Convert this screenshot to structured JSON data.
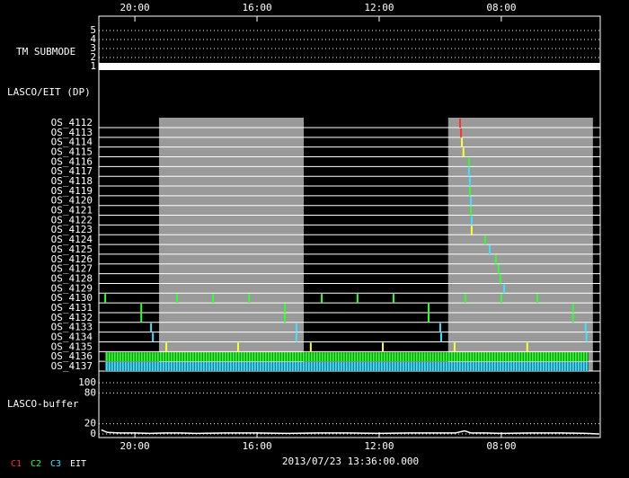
{
  "chart_data": {
    "type": "timeline",
    "xlim": [
      21.18,
      4.76
    ],
    "xticks": [
      {
        "value": 20,
        "label": "20:00"
      },
      {
        "value": 16,
        "label": "16:00"
      },
      {
        "value": 12,
        "label": "12:00"
      },
      {
        "value": 8,
        "label": "08:00"
      }
    ],
    "date_label": "2013/07/23 13:36:00.000",
    "legend": [
      {
        "name": "C1",
        "color": "#ff3030"
      },
      {
        "name": "C2",
        "color": "#30ff30"
      },
      {
        "name": "C3",
        "color": "#40e0ff"
      },
      {
        "name": "EIT",
        "color": "#ffffff"
      }
    ],
    "shaded": [
      [
        19.21,
        14.47
      ],
      [
        9.74,
        5.0
      ]
    ],
    "tm_submode": {
      "label": "TM SUBMODE",
      "ylim": [
        0.6,
        5.6
      ],
      "yticks": [
        1,
        2,
        3,
        4,
        5
      ],
      "value": 1
    },
    "os_panel": {
      "label": "LASCO/EIT (DP)",
      "rows": [
        {
          "name": "OS_4112",
          "color": "#ff3030",
          "events": [
            9.35
          ]
        },
        {
          "name": "OS_4113",
          "color": "#ff3030",
          "events": [
            9.32
          ]
        },
        {
          "name": "OS_4114",
          "color": "#ffff30",
          "events": [
            9.29
          ]
        },
        {
          "name": "OS_4115",
          "color": "#ffff30",
          "events": [
            9.24
          ]
        },
        {
          "name": "OS_4116",
          "color": "#30ff30",
          "events": [
            9.06
          ]
        },
        {
          "name": "OS_4117",
          "color": "#40e0ff",
          "events": [
            9.06
          ]
        },
        {
          "name": "OS_4118",
          "color": "#40e0ff",
          "events": [
            9.03
          ]
        },
        {
          "name": "OS_4119",
          "color": "#30ff30",
          "events": [
            9.03
          ]
        },
        {
          "name": "OS_4120",
          "color": "#40e0ff",
          "events": [
            9.0
          ]
        },
        {
          "name": "OS_4121",
          "color": "#30ff30",
          "events": [
            9.0
          ]
        },
        {
          "name": "OS_4122",
          "color": "#40e0ff",
          "events": [
            8.97
          ]
        },
        {
          "name": "OS_4123",
          "color": "#ffff30",
          "events": [
            8.97
          ]
        },
        {
          "name": "OS_4124",
          "color": "#30ff30",
          "events": [
            8.53
          ]
        },
        {
          "name": "OS_4125",
          "color": "#40e0ff",
          "events": [
            8.38
          ]
        },
        {
          "name": "OS_4126",
          "color": "#30ff30",
          "events": [
            8.18
          ]
        },
        {
          "name": "OS_4127",
          "color": "#30ff30",
          "events": [
            8.09
          ]
        },
        {
          "name": "OS_4128",
          "color": "#30ff30",
          "events": [
            8.03
          ]
        },
        {
          "name": "OS_4129",
          "color": "#40e0ff",
          "events": [
            7.91
          ]
        },
        {
          "name": "OS_4130",
          "color": "#30ff30",
          "events": [
            20.97,
            18.62,
            17.44,
            16.26,
            13.88,
            12.71,
            11.53,
            9.18,
            8.0,
            6.82
          ]
        },
        {
          "name": "OS_4131",
          "color": "#30ff30",
          "events": [
            19.79,
            15.09,
            10.38,
            5.65
          ]
        },
        {
          "name": "OS_4132",
          "color": "#30ff30",
          "events": [
            19.79,
            15.09,
            10.38,
            5.65
          ]
        },
        {
          "name": "OS_4133",
          "color": "#40e0ff",
          "events": [
            19.47,
            14.71,
            10.0,
            5.24
          ]
        },
        {
          "name": "OS_4134",
          "color": "#40e0ff",
          "events": [
            19.41,
            14.71,
            9.97,
            5.21
          ]
        },
        {
          "name": "OS_4135",
          "color": "#ffff30",
          "events": [
            18.97,
            16.62,
            14.24,
            11.88,
            9.53,
            7.15
          ]
        },
        {
          "name": "OS_4136",
          "color": "#30ff30",
          "span": [
            20.97,
            5.15
          ]
        },
        {
          "name": "OS_4137",
          "color": "#40e0ff",
          "span": [
            20.97,
            5.15
          ]
        }
      ]
    },
    "buffer": {
      "label": "LASCO-buffer",
      "ylim": [
        0,
        100
      ],
      "yticks": [
        0,
        20,
        80,
        100
      ],
      "x": [
        21.1,
        20.9,
        20.5,
        20.0,
        19.5,
        19.0,
        18.5,
        18.0,
        17.0,
        16.0,
        15.0,
        14.0,
        13.0,
        12.0,
        11.0,
        10.0,
        9.5,
        9.2,
        9.0,
        8.5,
        8.0,
        7.0,
        6.0,
        5.2,
        4.8
      ],
      "values": [
        8,
        3,
        2,
        2,
        1,
        2,
        2,
        1,
        2,
        2,
        1,
        2,
        2,
        1,
        2,
        2,
        2,
        6,
        2,
        2,
        1,
        2,
        2,
        1,
        0
      ]
    }
  }
}
